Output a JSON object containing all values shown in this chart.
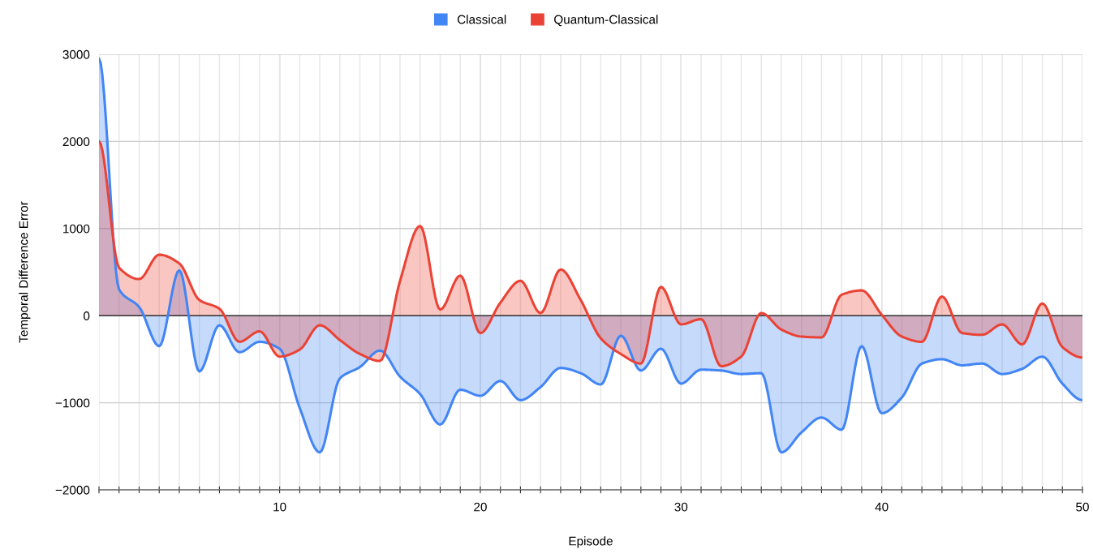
{
  "chart_data": {
    "type": "area",
    "xlabel": "Episode",
    "ylabel": "Temporal Difference Error",
    "x": [
      1,
      2,
      3,
      4,
      5,
      6,
      7,
      8,
      9,
      10,
      11,
      12,
      13,
      14,
      15,
      16,
      17,
      18,
      19,
      20,
      21,
      22,
      23,
      24,
      25,
      26,
      27,
      28,
      29,
      30,
      31,
      32,
      33,
      34,
      35,
      36,
      37,
      38,
      39,
      40,
      41,
      42,
      43,
      44,
      45,
      46,
      47,
      48,
      49,
      50
    ],
    "series": [
      {
        "name": "Classical",
        "color": "#4285f4",
        "values": [
          2950,
          300,
          100,
          -350,
          520,
          -640,
          -110,
          -420,
          -300,
          -380,
          -1060,
          -1570,
          -720,
          -590,
          -400,
          -700,
          -900,
          -1250,
          -850,
          -920,
          -750,
          -970,
          -820,
          -600,
          -660,
          -790,
          -230,
          -630,
          -380,
          -780,
          -620,
          -630,
          -670,
          -660,
          -1570,
          -1340,
          -1170,
          -1310,
          -350,
          -1120,
          -940,
          -550,
          -500,
          -570,
          -550,
          -670,
          -610,
          -470,
          -780,
          -970
        ]
      },
      {
        "name": "Quantum-Classical",
        "color": "#ea4335",
        "values": [
          2000,
          550,
          420,
          700,
          600,
          180,
          80,
          -300,
          -180,
          -470,
          -390,
          -110,
          -280,
          -440,
          -520,
          400,
          1030,
          70,
          460,
          -200,
          150,
          400,
          30,
          530,
          180,
          -260,
          -440,
          -550,
          330,
          -100,
          -40,
          -580,
          -470,
          30,
          -160,
          -240,
          -250,
          240,
          290,
          10,
          -240,
          -300,
          220,
          -200,
          -220,
          -100,
          -330,
          140,
          -360,
          -480
        ]
      }
    ],
    "xlim": [
      1,
      50
    ],
    "xticks": [
      {
        "value": 1,
        "label": null
      },
      {
        "value": 2,
        "label": null
      },
      {
        "value": 3,
        "label": null
      },
      {
        "value": 4,
        "label": null
      },
      {
        "value": 5,
        "label": null
      },
      {
        "value": 6,
        "label": null
      },
      {
        "value": 7,
        "label": null
      },
      {
        "value": 8,
        "label": null
      },
      {
        "value": 9,
        "label": null
      },
      10,
      {
        "value": 11,
        "label": null
      },
      {
        "value": 12,
        "label": null
      },
      {
        "value": 13,
        "label": null
      },
      {
        "value": 14,
        "label": null
      },
      {
        "value": 15,
        "label": null
      },
      {
        "value": 16,
        "label": null
      },
      {
        "value": 17,
        "label": null
      },
      {
        "value": 18,
        "label": null
      },
      {
        "value": 19,
        "label": null
      },
      20,
      {
        "value": 21,
        "label": null
      },
      {
        "value": 22,
        "label": null
      },
      {
        "value": 23,
        "label": null
      },
      {
        "value": 24,
        "label": null
      },
      {
        "value": 25,
        "label": null
      },
      {
        "value": 26,
        "label": null
      },
      {
        "value": 27,
        "label": null
      },
      {
        "value": 28,
        "label": null
      },
      {
        "value": 29,
        "label": null
      },
      30,
      {
        "value": 31,
        "label": null
      },
      {
        "value": 32,
        "label": null
      },
      {
        "value": 33,
        "label": null
      },
      {
        "value": 34,
        "label": null
      },
      {
        "value": 35,
        "label": null
      },
      {
        "value": 36,
        "label": null
      },
      {
        "value": 37,
        "label": null
      },
      {
        "value": 38,
        "label": null
      },
      {
        "value": 39,
        "label": null
      },
      40,
      {
        "value": 41,
        "label": null
      },
      {
        "value": 42,
        "label": null
      },
      {
        "value": 43,
        "label": null
      },
      {
        "value": 44,
        "label": null
      },
      {
        "value": 45,
        "label": null
      },
      {
        "value": 46,
        "label": null
      },
      {
        "value": 47,
        "label": null
      },
      {
        "value": 48,
        "label": null
      },
      {
        "value": 49,
        "label": null
      },
      50
    ],
    "ylim": [
      -2000,
      3000
    ],
    "yticks": [
      {
        "value": -2000,
        "label": "−2000"
      },
      {
        "value": -1000,
        "label": "−1000"
      },
      0,
      1000,
      2000,
      3000
    ],
    "grid": true,
    "legend": "top",
    "marker": "none",
    "line_style": "solid"
  }
}
